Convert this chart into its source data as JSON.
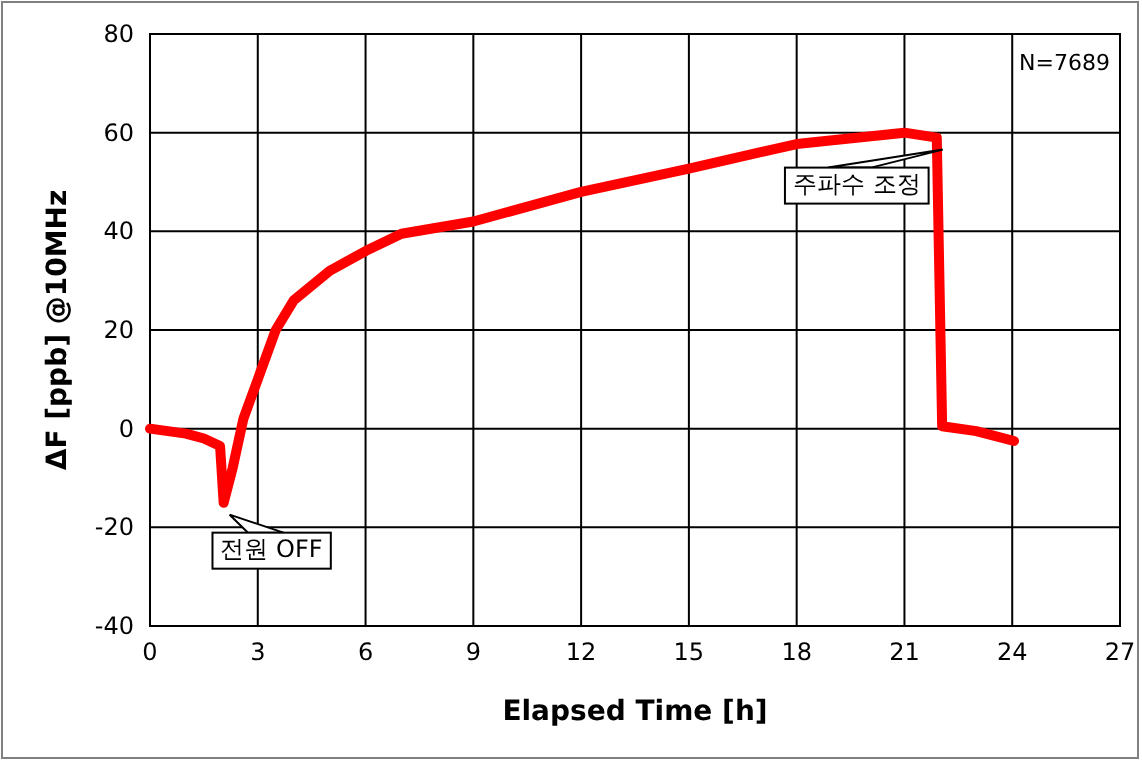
{
  "chart_data": {
    "type": "line",
    "xlabel": "Elapsed Time [h]",
    "ylabel": "ΔF [ppb] @10MHz",
    "x": [
      0,
      1,
      1.5,
      1.95,
      2.05,
      2.3,
      2.6,
      3,
      3.5,
      4,
      5,
      6,
      7,
      9,
      12,
      15,
      18,
      21,
      21.9,
      22.05,
      23,
      24.05
    ],
    "series": [
      {
        "color": "#ff0000",
        "values": [
          0,
          -1,
          -2,
          -3.5,
          -15,
          -8,
          2,
          10,
          20,
          26,
          32,
          36,
          39.5,
          42,
          48,
          52.7,
          57.7,
          60,
          59,
          0.5,
          -0.5,
          -2.5
        ]
      }
    ],
    "xlim": [
      0,
      27
    ],
    "ylim": [
      -40,
      80
    ],
    "xticks": [
      0,
      3,
      6,
      9,
      12,
      15,
      18,
      21,
      24,
      27
    ],
    "yticks": [
      -40,
      -20,
      0,
      20,
      40,
      60,
      80
    ],
    "grid": true,
    "marker": "none",
    "line_style": "solid",
    "annotations": [
      {
        "text": "전원 OFF",
        "x": 2.05,
        "y": -15
      },
      {
        "text": "주파수 조정",
        "x": 21.9,
        "y": 59
      },
      "N=7689"
    ]
  }
}
